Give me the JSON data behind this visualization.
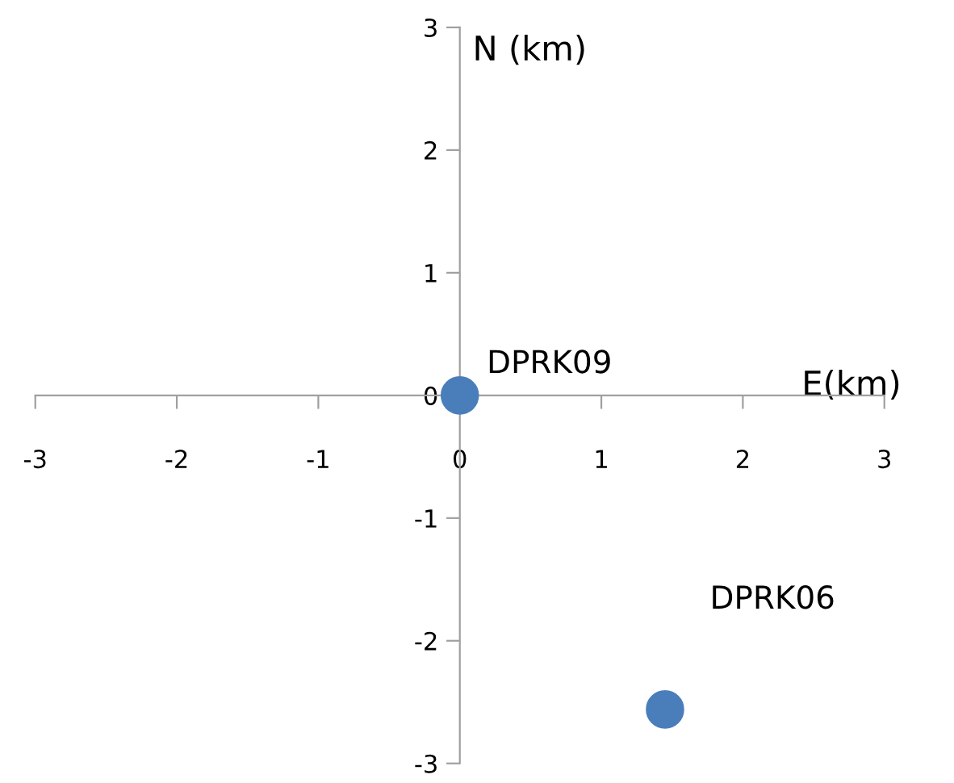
{
  "chart_data": {
    "type": "scatter",
    "xlabel": "E(km)",
    "ylabel": "N (km)",
    "series": [
      {
        "name": "DPRK09",
        "color": "#4a7ebb",
        "x": [
          0
        ],
        "values": [
          0
        ]
      },
      {
        "name": "DPRK06",
        "color": "#4a7ebb",
        "x": [
          1.45
        ],
        "values": [
          -2.56
        ]
      }
    ],
    "xlim": [
      -3,
      3
    ],
    "ylim": [
      -3,
      3
    ],
    "xticks": [
      -3,
      -2,
      -1,
      0,
      1,
      2,
      3
    ],
    "yticks": [
      -3,
      -2,
      -1,
      0,
      1,
      2,
      3
    ],
    "marker": "circle",
    "grid": false,
    "legend": false
  }
}
